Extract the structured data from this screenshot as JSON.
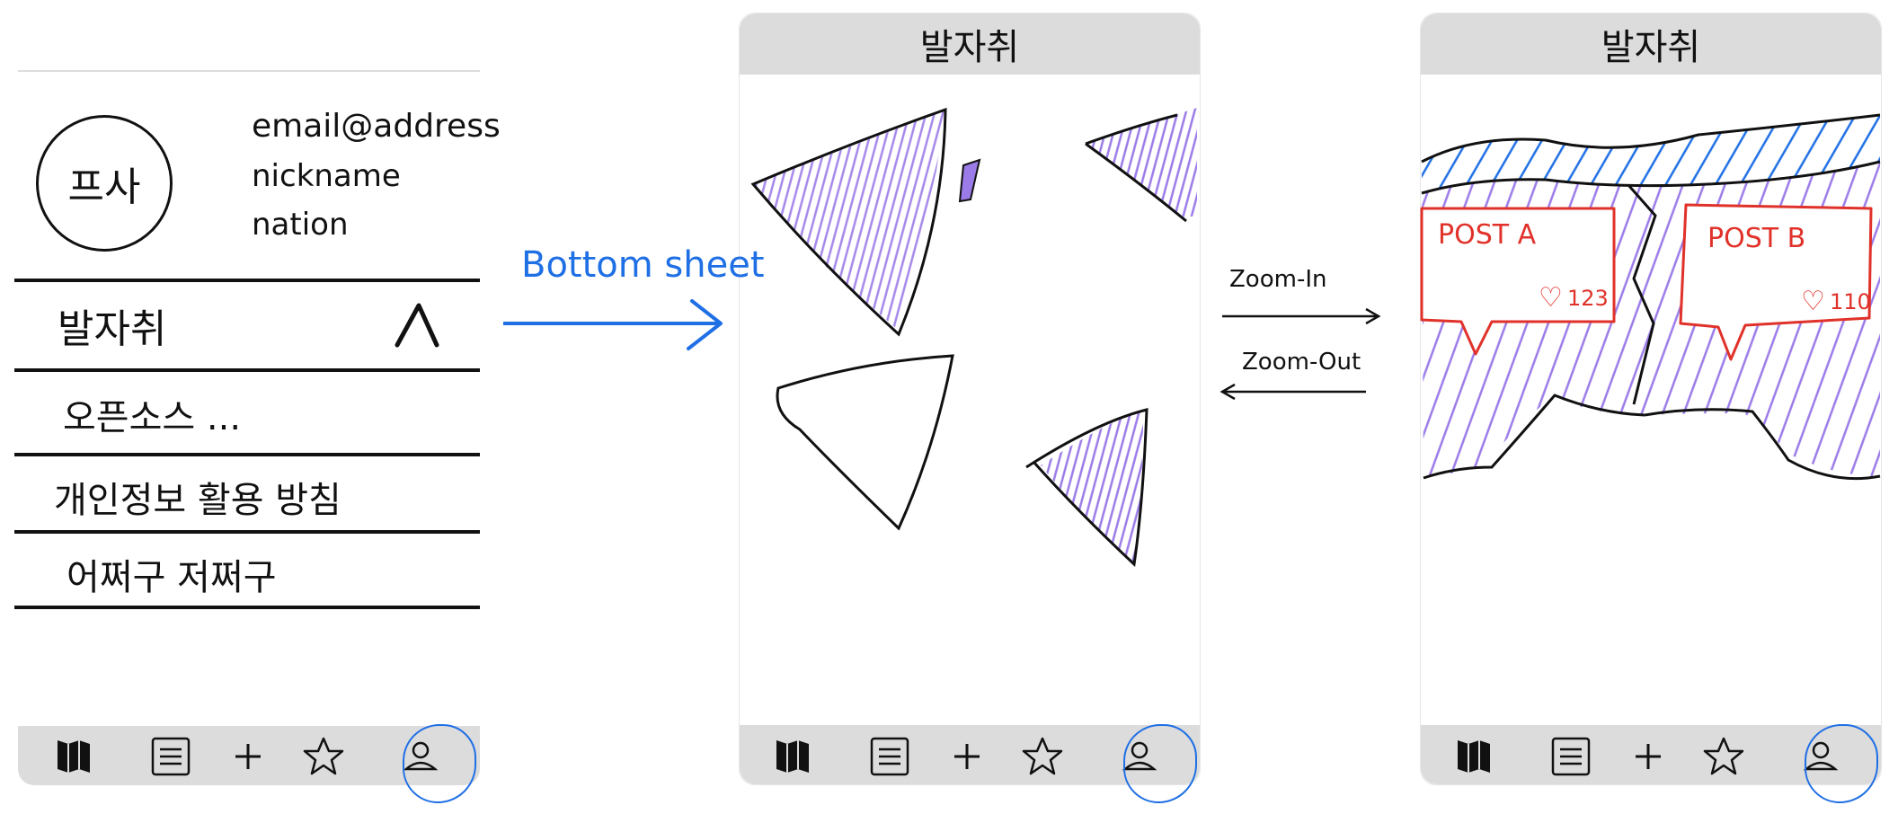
{
  "profile_screen": {
    "photo_label": "프사",
    "email": "email@address",
    "nickname": "nickname",
    "nation": "nation",
    "menu": [
      {
        "label": "발자취",
        "icon": "caret-up-icon"
      },
      {
        "label": "오픈소스 ..."
      },
      {
        "label": "개인정보 활용 방침"
      },
      {
        "label": "어쩌구 저쩌구"
      }
    ]
  },
  "transition_1": {
    "label": "Bottom sheet"
  },
  "map_screen": {
    "title": "발자취"
  },
  "zoom": {
    "zoom_in": "Zoom-In",
    "zoom_out": "Zoom-Out"
  },
  "detail_screen": {
    "title": "발자취",
    "posts": [
      {
        "title": "POST A",
        "likes": "123"
      },
      {
        "title": "POST B",
        "likes": "110"
      }
    ]
  },
  "nav_items": [
    "map-icon",
    "list-icon",
    "plus-icon",
    "star-icon",
    "person-icon"
  ],
  "colors": {
    "ink": "#111111",
    "blue": "#1f6fe5",
    "purple": "#9b7be8",
    "red": "#e0322a",
    "header": "#dcdcdc"
  }
}
